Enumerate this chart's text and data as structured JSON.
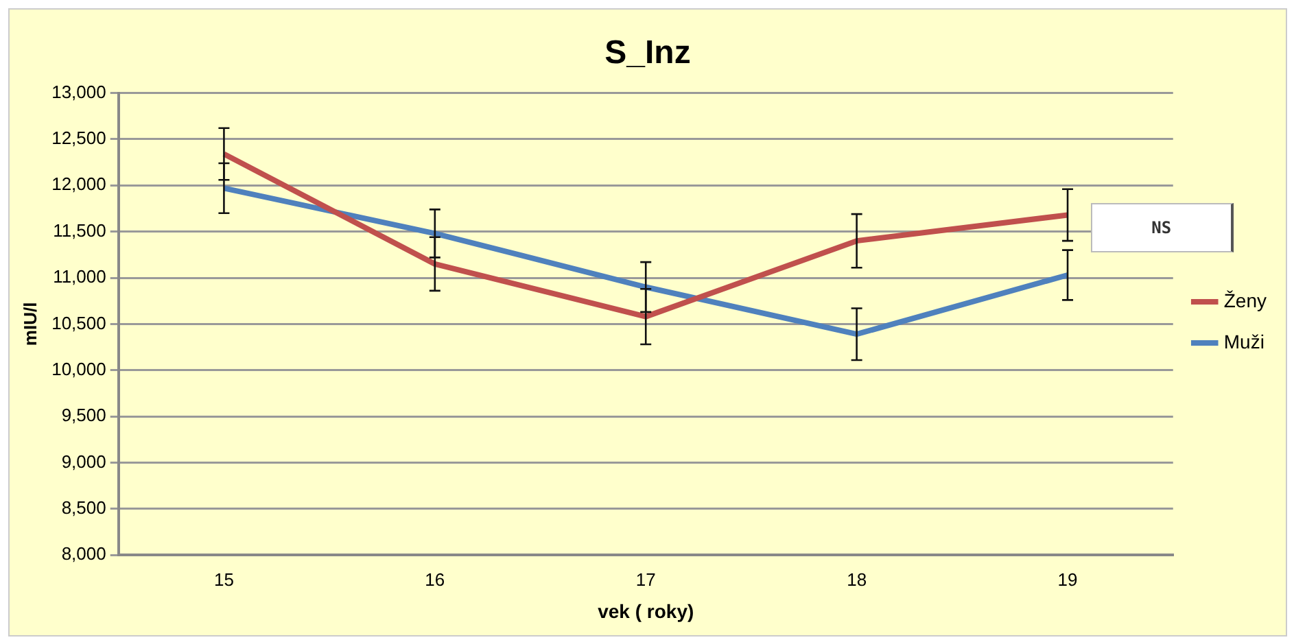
{
  "chart_data": {
    "type": "line",
    "title": "S_Inz",
    "xlabel": "vek ( roky)",
    "ylabel": "mIU/l",
    "categories": [
      "15",
      "16",
      "17",
      "18",
      "19"
    ],
    "series": [
      {
        "name": "Ženy",
        "color": "#c0504d",
        "values": [
          12340,
          11150,
          10580,
          11400,
          11680
        ],
        "errors": [
          280,
          290,
          300,
          290,
          280
        ]
      },
      {
        "name": "Muži",
        "color": "#4f81bd",
        "values": [
          11970,
          11480,
          10900,
          10390,
          11030
        ],
        "errors": [
          270,
          260,
          270,
          280,
          270
        ]
      }
    ],
    "ylim": [
      8000,
      13000
    ],
    "yticks": [
      {
        "value": 8000,
        "label": "8,000"
      },
      {
        "value": 8500,
        "label": "8,500"
      },
      {
        "value": 9000,
        "label": "9,000"
      },
      {
        "value": 9500,
        "label": "9,500"
      },
      {
        "value": 10000,
        "label": "10,000"
      },
      {
        "value": 10500,
        "label": "10,500"
      },
      {
        "value": 11000,
        "label": "11,000"
      },
      {
        "value": 11500,
        "label": "11,500"
      },
      {
        "value": 12000,
        "label": "12,000"
      },
      {
        "value": 12500,
        "label": "12,500"
      },
      {
        "value": 13000,
        "label": "13,000"
      }
    ],
    "annotations": [
      "NS"
    ],
    "grid": "y",
    "legend": "right",
    "marker": "none",
    "line_style": "solid"
  }
}
